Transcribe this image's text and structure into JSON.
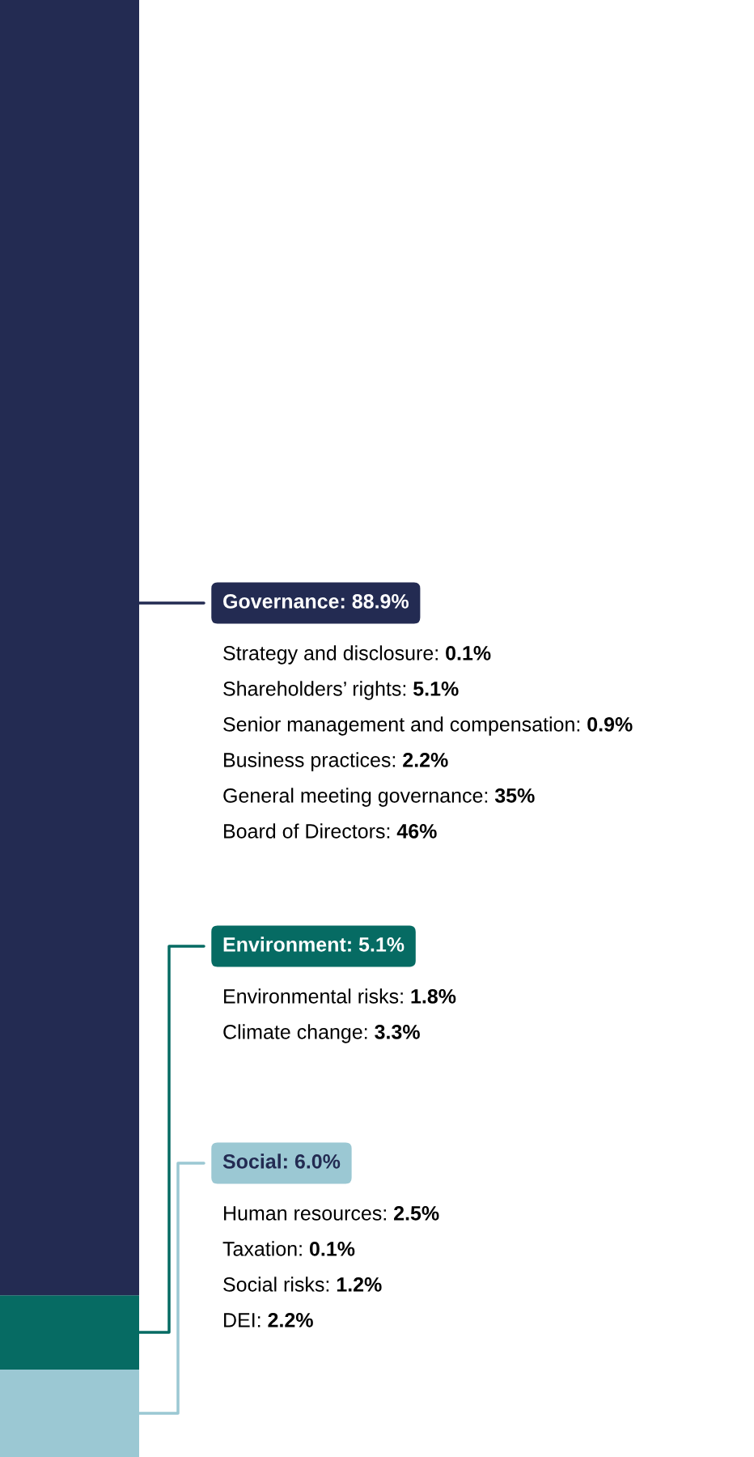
{
  "chart_data": {
    "type": "bar",
    "stacked": true,
    "categories": [
      null
    ],
    "series": [
      {
        "color": "#9bc8d3",
        "values": [
          6.0
        ],
        "value_labels": [
          "Social: 6.0%"
        ]
      },
      {
        "color": "#066b63",
        "values": [
          5.1
        ],
        "value_labels": [
          "Environment: 5.1%"
        ]
      },
      {
        "color": "#232b52",
        "values": [
          88.9
        ],
        "value_labels": [
          "Governance: 88.9%"
        ]
      }
    ],
    "annotations": [
      "Strategy and disclosure: 0.1%",
      "Shareholders’ rights: 5.1%",
      "Senior management and compensation: 0.9%",
      "Business practices: 2.2%",
      "General meeting governance: 35%",
      "Board of Directors: 46%",
      "Environmental risks: 1.8%",
      "Climate change: 3.3%",
      "Human resources: 2.5%",
      "Taxation: 0.1%",
      "Social risks: 1.2%",
      "DEI: 2.2%"
    ]
  }
}
